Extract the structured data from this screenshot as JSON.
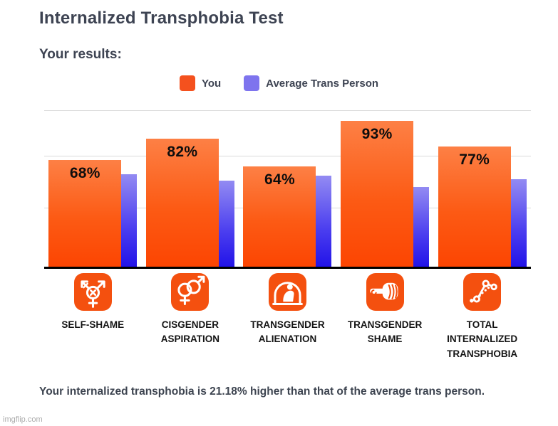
{
  "page": {
    "title": "Internalized Transphobia Test",
    "subtitle": "Your results:",
    "summary": "Your internalized transphobia is 21.18% higher than that of the average trans person.",
    "watermark": "imgflip.com"
  },
  "legend": {
    "items": [
      {
        "label": "You",
        "color": "#f4511e"
      },
      {
        "label": "Average Trans Person",
        "color": "#7e74ee"
      }
    ]
  },
  "chart_data": {
    "type": "bar",
    "categories": [
      "SELF-SHAME",
      "CISGENDER ASPIRATION",
      "TRANSGENDER ALIENATION",
      "TRANSGENDER SHAME",
      "TOTAL INTERNALIZED TRANSPHOBIA"
    ],
    "series": [
      {
        "name": "You",
        "values": [
          68,
          82,
          64,
          93,
          77
        ],
        "data_labels": [
          "68%",
          "82%",
          "64%",
          "93%",
          "77%"
        ],
        "color_top": "#fd8045",
        "color_bottom": "#fc4502"
      },
      {
        "name": "Average Trans Person",
        "values": [
          59,
          55,
          58,
          51,
          56
        ],
        "data_labels": [],
        "color_top": "#938bf2",
        "color_bottom": "#2213e8"
      }
    ],
    "title": "",
    "xlabel": "",
    "ylabel": "",
    "ylim": [
      0,
      100
    ],
    "grid": true,
    "gridline_positions_pct_from_top": [
      0,
      29,
      62
    ],
    "legend_position": "top-center",
    "axis_color": "#000000"
  },
  "icons": {
    "tile_color": "#f4500f",
    "items": [
      {
        "name": "transgender-x-icon"
      },
      {
        "name": "interlocked-genders-icon"
      },
      {
        "name": "person-in-dome-icon"
      },
      {
        "name": "pointing-hand-icon"
      },
      {
        "name": "line-graph-icon"
      }
    ]
  }
}
